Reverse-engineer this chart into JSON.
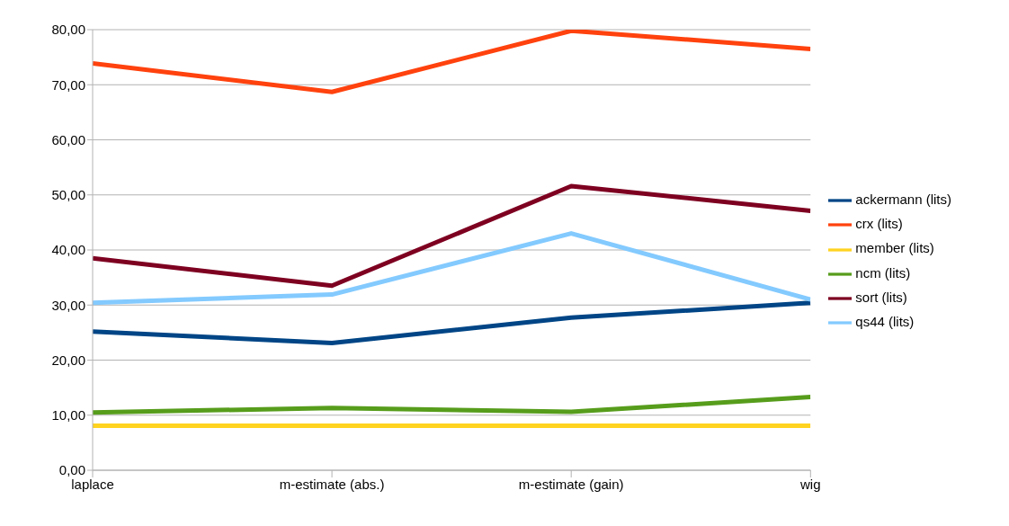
{
  "chart_data": {
    "type": "line",
    "categories": [
      "laplace",
      "m-estimate (abs.)",
      "m-estimate (gain)",
      "wig"
    ],
    "ylim": [
      0,
      80
    ],
    "yticks": [
      {
        "value": 0,
        "label": "0,00"
      },
      {
        "value": 10,
        "label": "10,00"
      },
      {
        "value": 20,
        "label": "20,00"
      },
      {
        "value": 30,
        "label": "30,00"
      },
      {
        "value": 40,
        "label": "40,00"
      },
      {
        "value": 50,
        "label": "50,00"
      },
      {
        "value": 60,
        "label": "60,00"
      },
      {
        "value": 70,
        "label": "70,00"
      },
      {
        "value": 80,
        "label": "80,00"
      }
    ],
    "grid": "y",
    "legend": "right",
    "marker": "none",
    "line_style": "solid",
    "series": [
      {
        "name": "ackermann (lits)",
        "color": "#004586",
        "values": [
          25.2,
          23.1,
          27.7,
          30.4
        ]
      },
      {
        "name": "crx (lits)",
        "color": "#ff420e",
        "values": [
          73.9,
          68.7,
          79.8,
          76.5
        ]
      },
      {
        "name": "member (lits)",
        "color": "#ffd320",
        "values": [
          8.1,
          8.1,
          8.1,
          8.1
        ]
      },
      {
        "name": "ncm (lits)",
        "color": "#579d1c",
        "values": [
          10.5,
          11.3,
          10.6,
          13.3
        ]
      },
      {
        "name": "sort (lits)",
        "color": "#7e0021",
        "values": [
          38.5,
          33.5,
          51.6,
          47.1
        ]
      },
      {
        "name": "qs44 (lits)",
        "color": "#83caff",
        "values": [
          30.4,
          31.9,
          43.0,
          31.0
        ]
      }
    ]
  }
}
